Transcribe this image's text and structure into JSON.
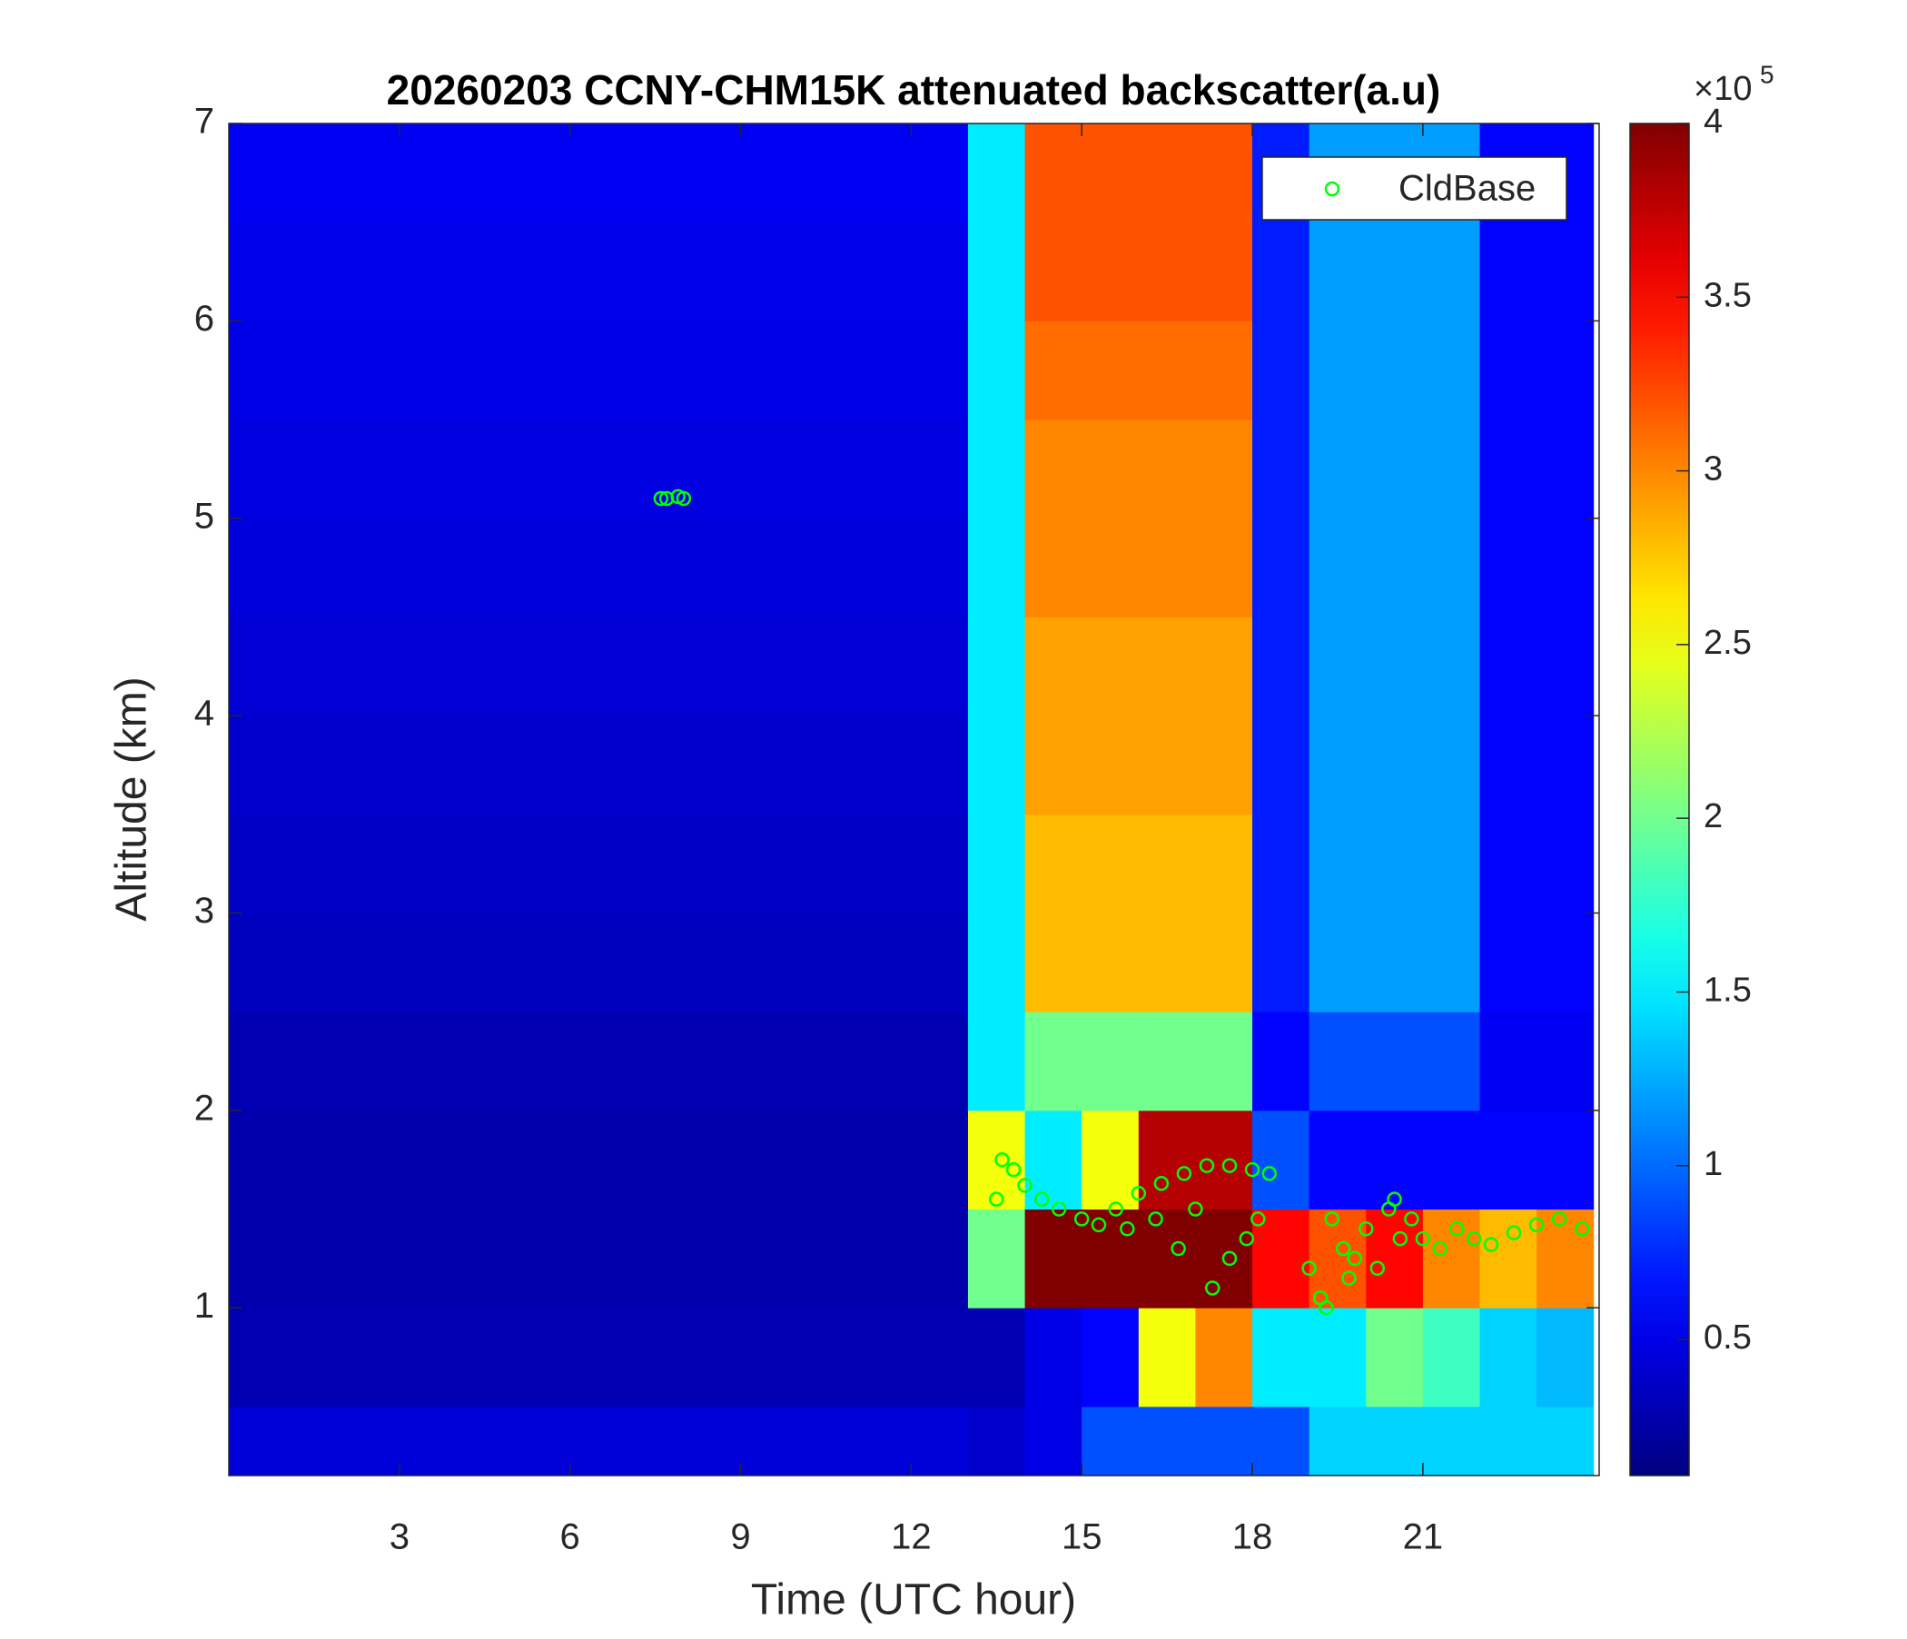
{
  "chart_data": {
    "type": "heatmap",
    "title": "20260203 CCNY-CHM15K attenuated backscatter(a.u)",
    "xlabel": "Time (UTC hour)",
    "ylabel": "Altitude (km)",
    "xlim": [
      0,
      24.1
    ],
    "xticks": [
      3,
      6,
      9,
      12,
      15,
      18,
      21
    ],
    "ylim": [
      0.15,
      7
    ],
    "yticks": [
      1,
      2,
      3,
      4,
      5,
      6,
      7
    ],
    "x": [
      0.5,
      1.5,
      2.5,
      3.5,
      4.5,
      5.5,
      6.5,
      7.5,
      8.5,
      9.5,
      10.5,
      11.5,
      12.5,
      13.5,
      14.5,
      15.5,
      16.5,
      17.5,
      18.5,
      19.5,
      20.5,
      21.5,
      22.5,
      23.5
    ],
    "y": [
      0.25,
      0.75,
      1.25,
      1.75,
      2.25,
      2.75,
      3.25,
      3.75,
      4.25,
      4.75,
      5.25,
      5.75,
      6.25,
      6.75
    ],
    "z": [
      [
        45000,
        45000,
        45000,
        45000,
        45000,
        45000,
        45000,
        45000,
        45000,
        45000,
        45000,
        45000,
        45000,
        40000,
        50000,
        90000,
        90000,
        90000,
        90000,
        140000,
        140000,
        140000,
        140000,
        140000
      ],
      [
        30000,
        30000,
        30000,
        30000,
        30000,
        30000,
        30000,
        30000,
        30000,
        30000,
        30000,
        30000,
        30000,
        30000,
        50000,
        60000,
        250000,
        300000,
        150000,
        150000,
        200000,
        180000,
        140000,
        130000
      ],
      [
        28000,
        28000,
        28000,
        28000,
        28000,
        28000,
        28000,
        28000,
        28000,
        28000,
        28000,
        28000,
        28000,
        200000,
        400000,
        400000,
        400000,
        400000,
        350000,
        320000,
        350000,
        300000,
        280000,
        300000
      ],
      [
        28000,
        28000,
        28000,
        28000,
        28000,
        28000,
        28000,
        28000,
        28000,
        28000,
        28000,
        28000,
        28000,
        250000,
        150000,
        250000,
        380000,
        380000,
        90000,
        60000,
        60000,
        60000,
        60000,
        60000
      ],
      [
        30000,
        30000,
        30000,
        30000,
        30000,
        30000,
        30000,
        30000,
        30000,
        30000,
        30000,
        30000,
        30000,
        150000,
        200000,
        200000,
        200000,
        200000,
        60000,
        90000,
        90000,
        90000,
        55000,
        55000
      ],
      [
        35000,
        35000,
        35000,
        35000,
        35000,
        35000,
        35000,
        35000,
        35000,
        35000,
        35000,
        35000,
        35000,
        150000,
        280000,
        280000,
        280000,
        280000,
        70000,
        120000,
        120000,
        120000,
        60000,
        60000
      ],
      [
        38000,
        38000,
        38000,
        38000,
        38000,
        38000,
        38000,
        38000,
        38000,
        38000,
        38000,
        38000,
        38000,
        150000,
        280000,
        280000,
        280000,
        280000,
        70000,
        120000,
        120000,
        120000,
        60000,
        60000
      ],
      [
        40000,
        40000,
        40000,
        40000,
        40000,
        40000,
        40000,
        40000,
        40000,
        40000,
        40000,
        40000,
        40000,
        150000,
        290000,
        290000,
        290000,
        290000,
        70000,
        120000,
        120000,
        120000,
        60000,
        60000
      ],
      [
        43000,
        43000,
        43000,
        43000,
        43000,
        43000,
        43000,
        43000,
        43000,
        43000,
        43000,
        43000,
        43000,
        150000,
        290000,
        290000,
        290000,
        290000,
        70000,
        120000,
        120000,
        120000,
        60000,
        60000
      ],
      [
        46000,
        46000,
        46000,
        46000,
        46000,
        46000,
        46000,
        46000,
        46000,
        46000,
        46000,
        46000,
        46000,
        150000,
        300000,
        300000,
        300000,
        300000,
        70000,
        120000,
        120000,
        120000,
        60000,
        60000
      ],
      [
        48000,
        48000,
        48000,
        48000,
        48000,
        48000,
        48000,
        48000,
        48000,
        48000,
        48000,
        48000,
        48000,
        150000,
        300000,
        300000,
        300000,
        300000,
        70000,
        120000,
        120000,
        120000,
        60000,
        60000
      ],
      [
        50000,
        50000,
        50000,
        50000,
        50000,
        50000,
        50000,
        50000,
        50000,
        50000,
        50000,
        50000,
        50000,
        150000,
        310000,
        310000,
        310000,
        310000,
        70000,
        120000,
        120000,
        120000,
        60000,
        60000
      ],
      [
        52000,
        52000,
        52000,
        52000,
        52000,
        52000,
        52000,
        52000,
        52000,
        52000,
        52000,
        52000,
        52000,
        150000,
        320000,
        320000,
        320000,
        320000,
        70000,
        120000,
        120000,
        120000,
        60000,
        60000
      ],
      [
        55000,
        55000,
        55000,
        55000,
        55000,
        55000,
        55000,
        55000,
        55000,
        55000,
        55000,
        55000,
        55000,
        150000,
        320000,
        320000,
        320000,
        320000,
        70000,
        120000,
        120000,
        120000,
        60000,
        60000
      ]
    ],
    "colormap": "jet",
    "clim": [
      10800,
      400000
    ],
    "cticks": [
      {
        "value": 50000,
        "label": "0.5"
      },
      {
        "value": 100000,
        "label": "1"
      },
      {
        "value": 150000,
        "label": "1.5"
      },
      {
        "value": 200000,
        "label": "2"
      },
      {
        "value": 250000,
        "label": "2.5"
      },
      {
        "value": 300000,
        "label": "3"
      },
      {
        "value": 350000,
        "label": "3.5"
      },
      {
        "value": 400000,
        "label": "4"
      }
    ],
    "colorbar_exponent_base": "×10",
    "colorbar_exponent": 5,
    "legend": "northeast",
    "series": [
      {
        "name": "CldBase",
        "color": "#00ff00",
        "marker": "circle",
        "x": [
          7.6,
          7.7,
          7.9,
          8.0,
          13.5,
          13.6,
          13.8,
          14.0,
          14.3,
          14.6,
          15.0,
          15.3,
          15.6,
          16.0,
          16.4,
          16.8,
          17.2,
          17.6,
          18.0,
          18.3,
          15.8,
          16.3,
          16.7,
          17.0,
          17.3,
          17.6,
          17.9,
          18.1,
          19.0,
          19.2,
          19.3,
          19.4,
          19.6,
          19.7,
          19.8,
          20.0,
          20.2,
          20.4,
          20.5,
          20.6,
          20.8,
          21.0,
          21.3,
          21.6,
          21.9,
          22.2,
          22.6,
          23.0,
          23.4,
          23.8
        ],
        "y": [
          5.1,
          5.1,
          5.11,
          5.1,
          1.55,
          1.75,
          1.7,
          1.62,
          1.55,
          1.5,
          1.45,
          1.42,
          1.5,
          1.58,
          1.63,
          1.68,
          1.72,
          1.72,
          1.7,
          1.68,
          1.4,
          1.45,
          1.3,
          1.5,
          1.1,
          1.25,
          1.35,
          1.45,
          1.2,
          1.05,
          1.0,
          1.45,
          1.3,
          1.15,
          1.25,
          1.4,
          1.2,
          1.5,
          1.55,
          1.35,
          1.45,
          1.35,
          1.3,
          1.4,
          1.35,
          1.32,
          1.38,
          1.42,
          1.45,
          1.4
        ]
      }
    ]
  }
}
